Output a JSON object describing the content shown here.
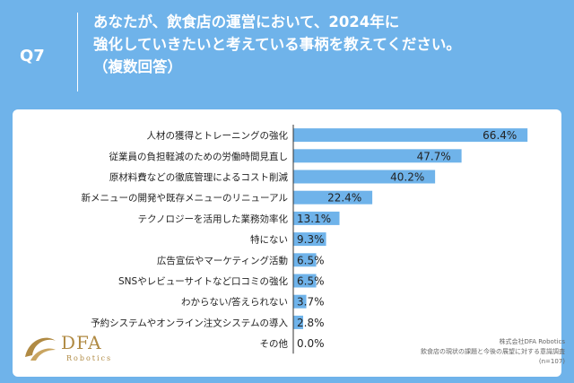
{
  "header": {
    "question_number": "Q7",
    "question_line1": "あなたが、飲食店の運営において、2024年に",
    "question_line2": "強化していきたいと考えている事柄を教えてください。",
    "question_line3": "（複数回答）"
  },
  "logo": {
    "brand": "DFA",
    "sub": "Robotics"
  },
  "source": {
    "company": "株式会社DFA Robotics",
    "survey": "飲食店の現状の課題と今後の展望に対する意識調査",
    "sample": "(n=107)"
  },
  "colors": {
    "bar": "#6fb3ea",
    "background": "#6fb3ea",
    "card": "#ffffff",
    "logo": "#b08a43"
  },
  "chart_data": {
    "type": "bar",
    "orientation": "horizontal",
    "unit": "%",
    "categories": [
      "人材の獲得とトレーニングの強化",
      "従業員の負担軽減のための労働時間見直し",
      "原材料費などの徹底管理によるコスト削減",
      "新メニューの開発や既存メニューのリニューアル",
      "テクノロジーを活用した業務効率化",
      "特にない",
      "広告宣伝やマーケティング活動",
      "SNSやレビューサイトなど口コミの強化",
      "わからない/答えられない",
      "予約システムやオンライン注文システムの導入",
      "その他"
    ],
    "values": [
      66.4,
      47.7,
      40.2,
      22.4,
      13.1,
      9.3,
      6.5,
      6.5,
      3.7,
      2.8,
      0.0
    ],
    "labels": [
      "66.4%",
      "47.7%",
      "40.2%",
      "22.4%",
      "13.1%",
      "9.3%",
      "6.5%",
      "6.5%",
      "3.7%",
      "2.8%",
      "0.0%"
    ],
    "xlim": [
      0,
      75
    ]
  }
}
